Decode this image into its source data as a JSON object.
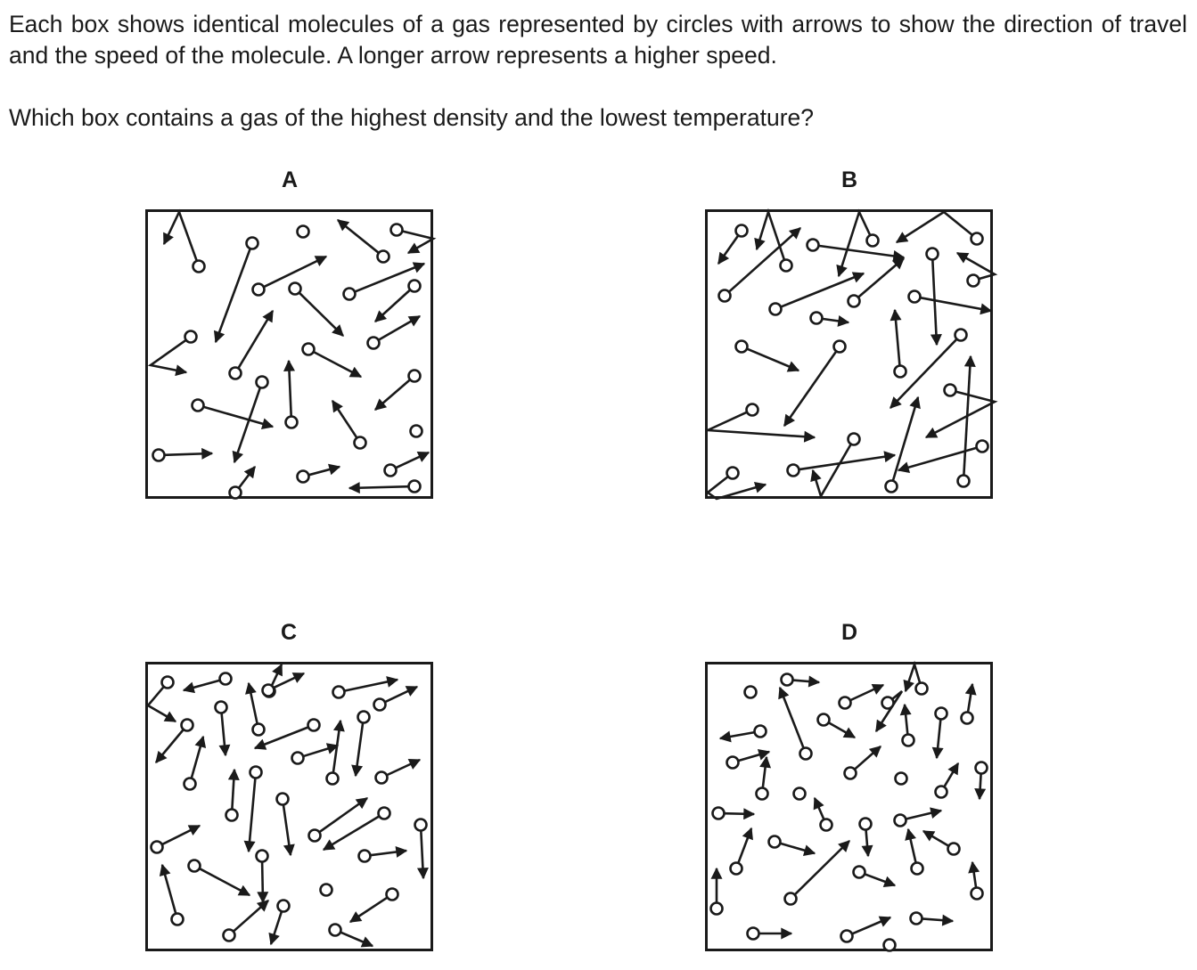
{
  "question": {
    "intro": "Each box shows identical molecules of a gas represented by circles with arrows to show the direction of travel and the speed of the molecule. A longer arrow represents a higher speed.",
    "prompt": "Which box contains a gas of the highest density and the lowest temperature?"
  },
  "options": [
    {
      "label": "A",
      "molecule_count": 22
    },
    {
      "label": "B",
      "molecule_count": 22
    },
    {
      "label": "C",
      "molecule_count": 32
    },
    {
      "label": "D",
      "molecule_count": 32
    }
  ],
  "colors": {
    "ink": "#1a1a1a",
    "background": "#ffffff"
  }
}
